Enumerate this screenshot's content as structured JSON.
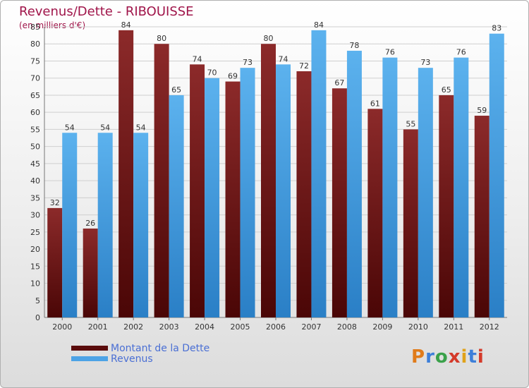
{
  "chart_data": {
    "type": "bar",
    "title": "Revenus/Dette - RIBOUISSE",
    "subtitle": "(en milliers d'€)",
    "categories": [
      "2000",
      "2001",
      "2002",
      "2003",
      "2004",
      "2005",
      "2006",
      "2007",
      "2008",
      "2009",
      "2010",
      "2011",
      "2012"
    ],
    "series": [
      {
        "name": "Montant de la Dette",
        "values": [
          32,
          26,
          84,
          80,
          74,
          69,
          80,
          72,
          67,
          61,
          55,
          65,
          59
        ],
        "color": "#7a1a1a"
      },
      {
        "name": "Revenus",
        "values": [
          54,
          54,
          54,
          65,
          70,
          73,
          74,
          84,
          78,
          76,
          73,
          76,
          83
        ],
        "color": "#4da3e6"
      }
    ],
    "ylim": [
      0,
      85
    ],
    "yticks": [
      0,
      5,
      10,
      15,
      20,
      25,
      30,
      35,
      40,
      45,
      50,
      55,
      60,
      65,
      70,
      75,
      80,
      85
    ],
    "grid": true,
    "legend": "bottom-left"
  },
  "logo_text": "Proxiti",
  "logo_colors": [
    "#e07b1a",
    "#3d7fd9",
    "#3aa14a",
    "#d43a2a",
    "#e0a21a",
    "#3d7fd9",
    "#d43a2a"
  ]
}
